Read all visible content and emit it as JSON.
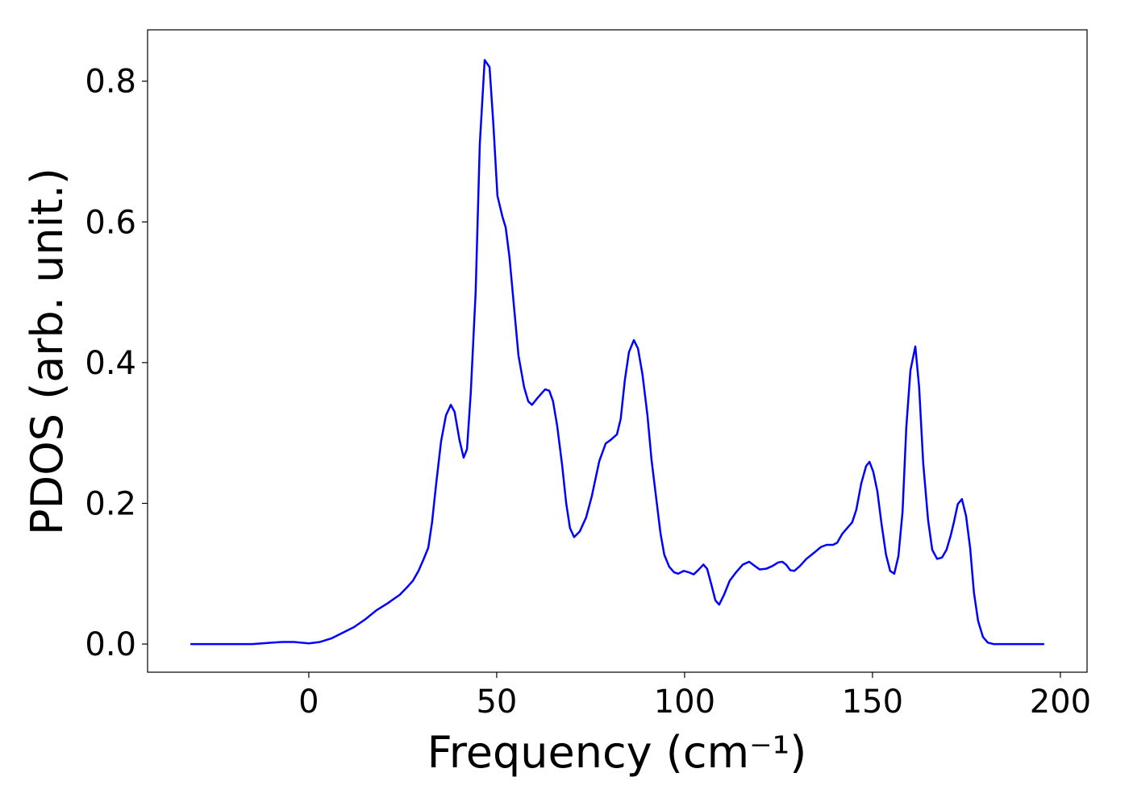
{
  "chart_data": {
    "type": "line",
    "x_label": "Frequency (cm⁻¹)",
    "y_label": "PDOS (arb. unit.)",
    "series": [
      {
        "color": "#0000ff",
        "x": [
          -31.5,
          -15,
          -10,
          -7,
          -4,
          0,
          3,
          6,
          9,
          12,
          15,
          18,
          21,
          22.3,
          24.2,
          26.2,
          27.7,
          29.2,
          30.5,
          31.8,
          32.8,
          33.9,
          35.2,
          36.5,
          37.8,
          38.8,
          40.1,
          41.2,
          42.1,
          43.1,
          44.4,
          45.5,
          46.8,
          48.1,
          49.1,
          50.2,
          51.5,
          52.4,
          53.4,
          55.8,
          57.3,
          58.4,
          59.4,
          60.9,
          62.9,
          64,
          65,
          66.1,
          67.4,
          68.5,
          69.5,
          70.6,
          72.1,
          73.8,
          75.3,
          77.3,
          79,
          80.3,
          82,
          83,
          84.1,
          85.2,
          86.5,
          87.6,
          88.8,
          90.1,
          91.2,
          92.5,
          93.6,
          94.6,
          95.9,
          97.2,
          98.3,
          99.8,
          101.1,
          102.4,
          103.6,
          105,
          106,
          107.1,
          108.2,
          109.2,
          110.5,
          112,
          113.7,
          115.5,
          117.2,
          118.7,
          120,
          121.7,
          123.4,
          124.9,
          126,
          127,
          128.1,
          129.2,
          130.7,
          132.4,
          134.5,
          136.3,
          137.8,
          139.5,
          140.6,
          142,
          143.3,
          144.6,
          145.7,
          147,
          148.3,
          149.2,
          150.2,
          151.3,
          152.4,
          153.6,
          154.7,
          155.8,
          156.9,
          158,
          159,
          160.1,
          161.4,
          162.4,
          163.5,
          164.8,
          165.9,
          167.2,
          168.5,
          169.7,
          170.8,
          171.7,
          172.7,
          173.8,
          174.9,
          176,
          177,
          178.1,
          179.4,
          180.7,
          182.2,
          195.7
        ],
        "values": [
          0,
          0,
          0.002,
          0.003,
          0.003,
          0.001,
          0.003,
          0.008,
          0.016,
          0.024,
          0.035,
          0.048,
          0.058,
          0.063,
          0.07,
          0.081,
          0.09,
          0.104,
          0.12,
          0.137,
          0.173,
          0.228,
          0.288,
          0.325,
          0.34,
          0.33,
          0.29,
          0.265,
          0.277,
          0.357,
          0.5,
          0.71,
          0.83,
          0.82,
          0.74,
          0.637,
          0.608,
          0.592,
          0.55,
          0.41,
          0.365,
          0.345,
          0.34,
          0.35,
          0.362,
          0.36,
          0.345,
          0.31,
          0.255,
          0.2,
          0.165,
          0.152,
          0.16,
          0.18,
          0.21,
          0.26,
          0.285,
          0.29,
          0.298,
          0.32,
          0.375,
          0.415,
          0.432,
          0.42,
          0.383,
          0.326,
          0.262,
          0.205,
          0.157,
          0.127,
          0.11,
          0.102,
          0.1,
          0.104,
          0.102,
          0.099,
          0.105,
          0.113,
          0.107,
          0.085,
          0.062,
          0.056,
          0.07,
          0.09,
          0.102,
          0.113,
          0.117,
          0.111,
          0.106,
          0.107,
          0.111,
          0.116,
          0.117,
          0.113,
          0.105,
          0.104,
          0.111,
          0.121,
          0.13,
          0.138,
          0.141,
          0.141,
          0.144,
          0.157,
          0.165,
          0.173,
          0.191,
          0.228,
          0.253,
          0.259,
          0.245,
          0.217,
          0.171,
          0.127,
          0.104,
          0.1,
          0.125,
          0.188,
          0.308,
          0.389,
          0.423,
          0.366,
          0.257,
          0.176,
          0.134,
          0.121,
          0.123,
          0.134,
          0.154,
          0.174,
          0.199,
          0.206,
          0.182,
          0.136,
          0.073,
          0.033,
          0.01,
          0.002,
          0,
          0
        ]
      }
    ],
    "xlim": [
      -42.9,
      207.1
    ],
    "ylim": [
      -0.04,
      0.873
    ],
    "xticks": [
      0,
      50,
      100,
      150,
      200
    ],
    "yticks": [
      {
        "value": 0,
        "label": "0.0"
      },
      {
        "value": 0.2,
        "label": "0.2"
      },
      {
        "value": 0.4,
        "label": "0.4"
      },
      {
        "value": 0.6,
        "label": "0.6"
      },
      {
        "value": 0.8,
        "label": "0.8"
      }
    ]
  }
}
